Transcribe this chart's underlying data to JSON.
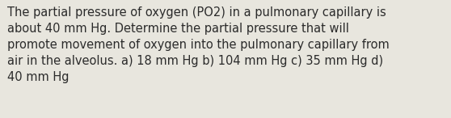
{
  "text": "The partial pressure of oxygen (PO2) in a pulmonary capillary is\nabout 40 mm Hg. Determine the partial pressure that will\npromote movement of oxygen into the pulmonary capillary from\nair in the alveolus. a) 18 mm Hg b) 104 mm Hg c) 35 mm Hg d)\n40 mm Hg",
  "background_color": "#e8e6de",
  "text_color": "#2b2b2b",
  "font_size": 10.5,
  "fig_width": 5.58,
  "fig_height": 1.46,
  "dpi": 100
}
